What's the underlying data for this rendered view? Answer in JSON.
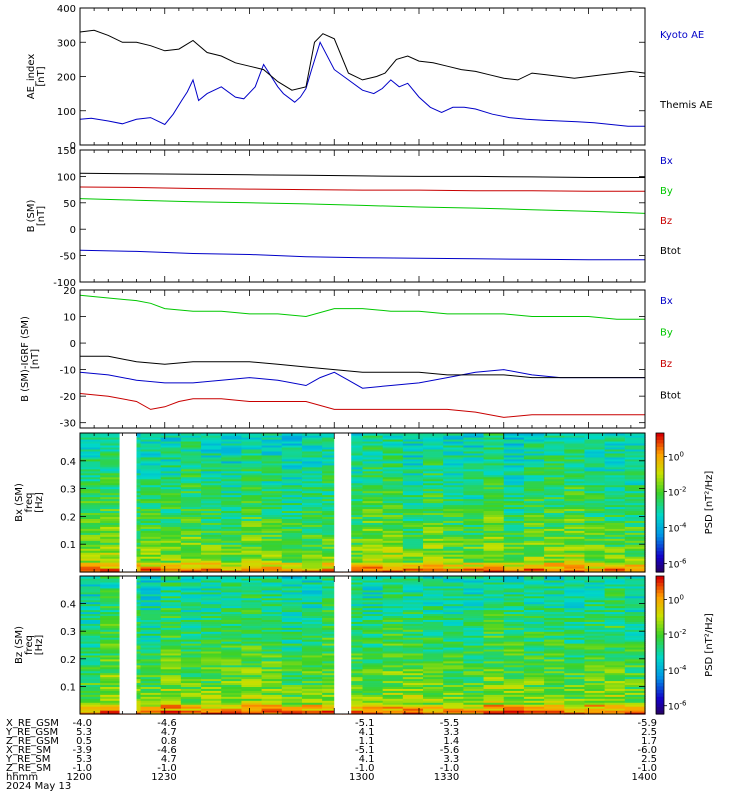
{
  "chart_data": [
    {
      "type": "line",
      "ylabel_lines": [
        "AE_index",
        "[nT]"
      ],
      "ylim": [
        0,
        400
      ],
      "yticks": [
        0,
        100,
        200,
        300,
        400
      ],
      "xlim": [
        1200,
        1400
      ],
      "legend": [
        {
          "label": "Kyoto AE",
          "color": "#0000c8"
        },
        {
          "label": "Themis AE",
          "color": "#000000"
        }
      ],
      "series": [
        {
          "name": "Kyoto AE",
          "color": "#0000c8",
          "x": [
            1200,
            1204,
            1210,
            1215,
            1220,
            1225,
            1230,
            1233,
            1236,
            1238,
            1240,
            1242,
            1245,
            1250,
            1255,
            1258,
            1262,
            1265,
            1270,
            1272,
            1276,
            1278,
            1280,
            1282,
            1285,
            1290,
            1295,
            1300,
            1304,
            1307,
            1310,
            1313,
            1316,
            1320,
            1324,
            1328,
            1332,
            1336,
            1340,
            1346,
            1352,
            1358,
            1364,
            1370,
            1376,
            1382,
            1388,
            1394,
            1400
          ],
          "y": [
            75,
            78,
            70,
            62,
            75,
            80,
            60,
            90,
            130,
            155,
            190,
            130,
            150,
            170,
            140,
            135,
            170,
            235,
            170,
            150,
            125,
            140,
            165,
            220,
            300,
            220,
            190,
            160,
            150,
            165,
            190,
            170,
            180,
            140,
            110,
            95,
            110,
            110,
            105,
            90,
            80,
            75,
            72,
            70,
            68,
            65,
            60,
            55,
            55
          ]
        },
        {
          "name": "Themis AE",
          "color": "#000000",
          "x": [
            1200,
            1205,
            1210,
            1215,
            1220,
            1225,
            1230,
            1235,
            1240,
            1245,
            1250,
            1255,
            1260,
            1265,
            1270,
            1275,
            1280,
            1283,
            1286,
            1290,
            1295,
            1300,
            1305,
            1308,
            1312,
            1316,
            1320,
            1325,
            1330,
            1335,
            1340,
            1345,
            1350,
            1355,
            1360,
            1365,
            1370,
            1375,
            1380,
            1385,
            1390,
            1395,
            1400
          ],
          "y": [
            330,
            335,
            320,
            300,
            300,
            290,
            275,
            280,
            305,
            270,
            260,
            240,
            230,
            220,
            185,
            160,
            170,
            300,
            325,
            310,
            210,
            190,
            200,
            210,
            250,
            260,
            245,
            240,
            230,
            220,
            215,
            205,
            195,
            190,
            210,
            205,
            200,
            195,
            200,
            205,
            210,
            215,
            210
          ]
        }
      ]
    },
    {
      "type": "line",
      "ylabel_lines": [
        "B (SM)",
        "[nT]"
      ],
      "ylim": [
        -100,
        150
      ],
      "yticks": [
        -100,
        -50,
        0,
        50,
        100,
        150
      ],
      "xlim": [
        1200,
        1400
      ],
      "legend": [
        {
          "label": "Bx",
          "color": "#0000c8"
        },
        {
          "label": "By",
          "color": "#00c800"
        },
        {
          "label": "Bz",
          "color": "#c80000"
        },
        {
          "label": "Btot",
          "color": "#000000"
        }
      ],
      "series": [
        {
          "name": "Bx",
          "color": "#0000c8",
          "x": [
            1200,
            1220,
            1240,
            1260,
            1280,
            1300,
            1320,
            1340,
            1360,
            1380,
            1400
          ],
          "y": [
            -40,
            -42,
            -46,
            -48,
            -52,
            -54,
            -55,
            -56,
            -57,
            -58,
            -58
          ]
        },
        {
          "name": "By",
          "color": "#00c800",
          "x": [
            1200,
            1220,
            1240,
            1260,
            1280,
            1300,
            1320,
            1340,
            1360,
            1380,
            1400
          ],
          "y": [
            58,
            55,
            52,
            50,
            48,
            45,
            42,
            40,
            37,
            34,
            30
          ]
        },
        {
          "name": "Bz",
          "color": "#c80000",
          "x": [
            1200,
            1220,
            1240,
            1260,
            1280,
            1300,
            1320,
            1340,
            1360,
            1380,
            1400
          ],
          "y": [
            80,
            79,
            77,
            76,
            75,
            74,
            74,
            73,
            73,
            72,
            72
          ]
        },
        {
          "name": "Btot",
          "color": "#000000",
          "x": [
            1200,
            1220,
            1240,
            1260,
            1280,
            1300,
            1320,
            1340,
            1360,
            1380,
            1400
          ],
          "y": [
            106,
            105,
            104,
            103,
            102,
            101,
            100,
            100,
            99,
            98,
            98
          ]
        }
      ]
    },
    {
      "type": "line",
      "ylabel_lines": [
        "B (SM)-IGRF (SM)",
        "[nT]"
      ],
      "ylim": [
        -32,
        20
      ],
      "yticks": [
        -30,
        -20,
        -10,
        0,
        10,
        20
      ],
      "xlim": [
        1200,
        1400
      ],
      "legend": [
        {
          "label": "Bx",
          "color": "#0000c8"
        },
        {
          "label": "By",
          "color": "#00c800"
        },
        {
          "label": "Bz",
          "color": "#c80000"
        },
        {
          "label": "Btot",
          "color": "#000000"
        }
      ],
      "series": [
        {
          "name": "Bx",
          "color": "#0000c8",
          "x": [
            1200,
            1210,
            1220,
            1230,
            1240,
            1250,
            1260,
            1270,
            1280,
            1285,
            1290,
            1295,
            1300,
            1310,
            1320,
            1330,
            1340,
            1350,
            1360,
            1370,
            1380,
            1390,
            1400
          ],
          "y": [
            -11,
            -12,
            -14,
            -15,
            -15,
            -14,
            -13,
            -14,
            -16,
            -13,
            -11,
            -14,
            -17,
            -16,
            -15,
            -13,
            -11,
            -10,
            -12,
            -13,
            -13,
            -13,
            -13
          ]
        },
        {
          "name": "By",
          "color": "#00c800",
          "x": [
            1200,
            1210,
            1220,
            1225,
            1230,
            1240,
            1250,
            1260,
            1270,
            1280,
            1290,
            1300,
            1310,
            1320,
            1330,
            1340,
            1350,
            1360,
            1370,
            1380,
            1390,
            1400
          ],
          "y": [
            18,
            17,
            16,
            15,
            13,
            12,
            12,
            11,
            11,
            10,
            13,
            13,
            12,
            12,
            11,
            11,
            11,
            10,
            10,
            10,
            9,
            9
          ]
        },
        {
          "name": "Bz",
          "color": "#c80000",
          "x": [
            1200,
            1210,
            1220,
            1225,
            1230,
            1235,
            1240,
            1250,
            1260,
            1270,
            1280,
            1290,
            1300,
            1310,
            1320,
            1330,
            1340,
            1350,
            1360,
            1370,
            1380,
            1390,
            1400
          ],
          "y": [
            -19,
            -20,
            -22,
            -25,
            -24,
            -22,
            -21,
            -21,
            -22,
            -22,
            -22,
            -25,
            -25,
            -25,
            -25,
            -25,
            -26,
            -28,
            -27,
            -27,
            -27,
            -27,
            -27
          ]
        },
        {
          "name": "Btot",
          "color": "#000000",
          "x": [
            1200,
            1210,
            1220,
            1230,
            1240,
            1250,
            1260,
            1270,
            1280,
            1290,
            1300,
            1310,
            1320,
            1330,
            1340,
            1350,
            1360,
            1370,
            1380,
            1390,
            1400
          ],
          "y": [
            -5,
            -5,
            -7,
            -8,
            -7,
            -7,
            -7,
            -8,
            -9,
            -10,
            -11,
            -11,
            -11,
            -12,
            -12,
            -12,
            -13,
            -13,
            -13,
            -13,
            -13
          ]
        }
      ]
    },
    {
      "type": "heatmap",
      "ylabel_lines": [
        "Bx (SM)",
        "freq",
        "[Hz]"
      ],
      "ylim": [
        0,
        0.5
      ],
      "yticks": [
        0.1,
        0.2,
        0.3,
        0.4
      ],
      "xlim": [
        1200,
        1400
      ],
      "data_gaps": [
        [
          1214,
          1220
        ],
        [
          1290,
          1296
        ]
      ],
      "colorbar": {
        "label": "PSD [nT²/Hz]",
        "ticks": [
          "10^0",
          "10^-2",
          "10^-4",
          "10^-6"
        ],
        "scale": "log"
      }
    },
    {
      "type": "heatmap",
      "ylabel_lines": [
        "Bz (SM)",
        "freq",
        "[Hz]"
      ],
      "ylim": [
        0,
        0.5
      ],
      "yticks": [
        0.1,
        0.2,
        0.3,
        0.4
      ],
      "xlim": [
        1200,
        1400
      ],
      "data_gaps": [
        [
          1214,
          1220
        ],
        [
          1290,
          1296
        ]
      ],
      "colorbar": {
        "label": "PSD [nT²/Hz]",
        "ticks": [
          "10^0",
          "10^-2",
          "10^-4",
          "10^-6"
        ],
        "scale": "log"
      }
    }
  ],
  "ephemeris": {
    "row_labels": [
      "X_RE_GSM",
      "Y_RE_GSM",
      "Z_RE_GSM",
      "X_RE_SM",
      "Y_RE_SM",
      "Z_RE_SM",
      "hhmm",
      "2024 May 13"
    ],
    "tick_x": [
      1200,
      1230,
      1300,
      1330,
      1400
    ],
    "values": [
      [
        "-4.0",
        "-4.6",
        "-5.1",
        "-5.5",
        "-5.9"
      ],
      [
        "5.3",
        "4.7",
        "4.1",
        "3.3",
        "2.5"
      ],
      [
        "0.5",
        "0.8",
        "1.1",
        "1.4",
        "1.7"
      ],
      [
        "-3.9",
        "-4.6",
        "-5.1",
        "-5.6",
        "-6.0"
      ],
      [
        "5.3",
        "4.7",
        "4.1",
        "3.3",
        "2.5"
      ],
      [
        "-1.0",
        "-1.0",
        "-1.0",
        "-1.0",
        "-1.0"
      ],
      [
        "1200",
        "1230",
        "1300",
        "1330",
        "1400"
      ]
    ]
  }
}
